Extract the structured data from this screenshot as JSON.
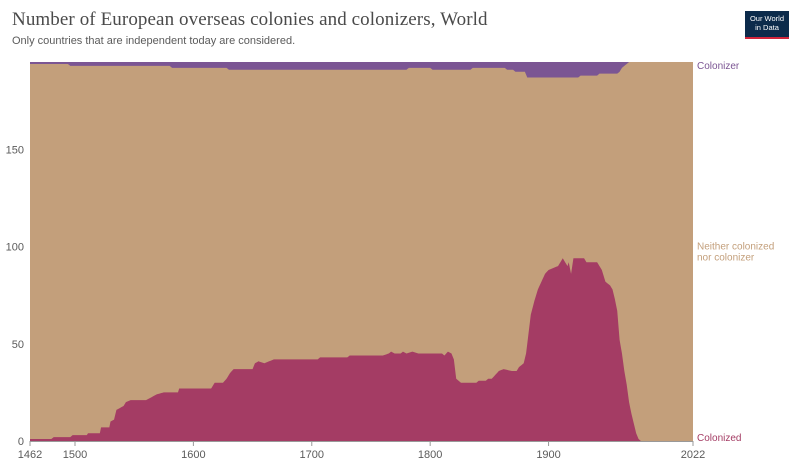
{
  "header": {
    "title": "Number of European overseas colonies and colonizers, World",
    "subtitle": "Only countries that are independent today are considered.",
    "logo_line1": "Our World",
    "logo_line2": "in Data"
  },
  "colors": {
    "colonized": "#a43c64",
    "neither": "#c39f7b",
    "colonizer": "#7b5593",
    "grid": "#dddddd",
    "axis_text": "#5b5b5b"
  },
  "chart_data": {
    "type": "area",
    "stacked": true,
    "title": "Number of European overseas colonies and colonizers, World",
    "subtitle": "Only countries that are independent today are considered.",
    "xlim": [
      1462,
      2022
    ],
    "ylim": [
      0,
      195
    ],
    "x_ticks": [
      1462,
      1500,
      1600,
      1700,
      1800,
      1900,
      2022
    ],
    "y_ticks": [
      0,
      50,
      100,
      150
    ],
    "grid": "horizontal dashed",
    "legend": "right, labels at series ends",
    "total": 195,
    "series": [
      {
        "name": "Colonized",
        "color": "#a43c64",
        "points": [
          [
            1462,
            1
          ],
          [
            1480,
            1
          ],
          [
            1482,
            2
          ],
          [
            1496,
            2
          ],
          [
            1498,
            3
          ],
          [
            1510,
            3
          ],
          [
            1511,
            4
          ],
          [
            1521,
            4
          ],
          [
            1522,
            7
          ],
          [
            1529,
            7
          ],
          [
            1530,
            10
          ],
          [
            1533,
            11
          ],
          [
            1535,
            16
          ],
          [
            1541,
            18
          ],
          [
            1543,
            20
          ],
          [
            1547,
            21
          ],
          [
            1560,
            21
          ],
          [
            1563,
            22
          ],
          [
            1569,
            24
          ],
          [
            1575,
            25
          ],
          [
            1587,
            25
          ],
          [
            1588,
            27
          ],
          [
            1615,
            27
          ],
          [
            1618,
            30
          ],
          [
            1625,
            30
          ],
          [
            1628,
            32
          ],
          [
            1631,
            35
          ],
          [
            1634,
            37
          ],
          [
            1650,
            37
          ],
          [
            1652,
            40
          ],
          [
            1655,
            41
          ],
          [
            1660,
            40
          ],
          [
            1664,
            41
          ],
          [
            1668,
            42
          ],
          [
            1705,
            42
          ],
          [
            1707,
            43
          ],
          [
            1730,
            43
          ],
          [
            1732,
            44
          ],
          [
            1760,
            44
          ],
          [
            1765,
            45
          ],
          [
            1767,
            46
          ],
          [
            1770,
            45
          ],
          [
            1775,
            45
          ],
          [
            1777,
            46
          ],
          [
            1780,
            45
          ],
          [
            1785,
            46
          ],
          [
            1790,
            45
          ],
          [
            1810,
            45
          ],
          [
            1812,
            44
          ],
          [
            1815,
            46
          ],
          [
            1818,
            45
          ],
          [
            1820,
            42
          ],
          [
            1822,
            32
          ],
          [
            1824,
            31
          ],
          [
            1826,
            30
          ],
          [
            1839,
            30
          ],
          [
            1841,
            31
          ],
          [
            1847,
            31
          ],
          [
            1849,
            32
          ],
          [
            1852,
            32
          ],
          [
            1855,
            34
          ],
          [
            1858,
            36
          ],
          [
            1862,
            37
          ],
          [
            1869,
            36
          ],
          [
            1873,
            36
          ],
          [
            1875,
            38
          ],
          [
            1879,
            40
          ],
          [
            1881,
            45
          ],
          [
            1883,
            55
          ],
          [
            1885,
            65
          ],
          [
            1888,
            72
          ],
          [
            1891,
            78
          ],
          [
            1894,
            82
          ],
          [
            1897,
            86
          ],
          [
            1900,
            88
          ],
          [
            1904,
            89
          ],
          [
            1908,
            90
          ],
          [
            1911,
            93
          ],
          [
            1912,
            94
          ],
          [
            1914,
            92
          ],
          [
            1916,
            90
          ],
          [
            1917,
            92
          ],
          [
            1919,
            86
          ],
          [
            1921,
            94
          ],
          [
            1930,
            94
          ],
          [
            1932,
            92
          ],
          [
            1941,
            92
          ],
          [
            1943,
            90
          ],
          [
            1945,
            88
          ],
          [
            1948,
            82
          ],
          [
            1952,
            80
          ],
          [
            1954,
            78
          ],
          [
            1956,
            73
          ],
          [
            1958,
            67
          ],
          [
            1960,
            52
          ],
          [
            1962,
            45
          ],
          [
            1964,
            36
          ],
          [
            1966,
            29
          ],
          [
            1968,
            20
          ],
          [
            1970,
            14
          ],
          [
            1972,
            9
          ],
          [
            1974,
            4
          ],
          [
            1976,
            1
          ],
          [
            1978,
            0
          ],
          [
            2022,
            0
          ]
        ]
      },
      {
        "name": "Neither colonized nor colonizer",
        "color": "#c39f7b",
        "note": "remainder of total"
      },
      {
        "name": "Colonizer",
        "color": "#7b5593",
        "points": [
          [
            1462,
            1
          ],
          [
            1494,
            1
          ],
          [
            1496,
            2
          ],
          [
            1580,
            2
          ],
          [
            1582,
            3
          ],
          [
            1628,
            3
          ],
          [
            1630,
            4
          ],
          [
            1780,
            4
          ],
          [
            1782,
            3
          ],
          [
            1800,
            3
          ],
          [
            1802,
            4
          ],
          [
            1834,
            4
          ],
          [
            1836,
            3
          ],
          [
            1863,
            3
          ],
          [
            1865,
            4
          ],
          [
            1870,
            4
          ],
          [
            1872,
            5
          ],
          [
            1880,
            5
          ],
          [
            1882,
            8
          ],
          [
            1925,
            8
          ],
          [
            1927,
            7
          ],
          [
            1941,
            7
          ],
          [
            1943,
            6
          ],
          [
            1958,
            6
          ],
          [
            1960,
            5
          ],
          [
            1962,
            3
          ],
          [
            1964,
            2
          ],
          [
            1966,
            1
          ],
          [
            1968,
            0
          ],
          [
            2022,
            0
          ]
        ]
      }
    ],
    "series_labels": [
      "Colonizer",
      "Neither colonized",
      "nor colonizer",
      "Colonized"
    ]
  }
}
